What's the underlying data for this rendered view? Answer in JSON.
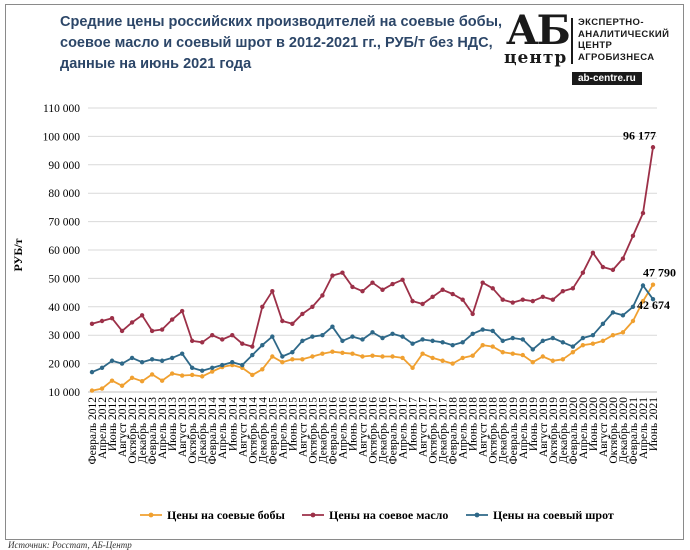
{
  "title_lines": [
    "Средние цены российских производителей  на соевые бобы,",
    "соевое масло и соевый шрот в 2012-2021 гг., РУБ/т без НДС,",
    "данные на июнь 2021 года"
  ],
  "logo": {
    "mark": "АБ",
    "word": "центр",
    "lines": [
      "ЭКСПЕРТНО-",
      "АНАЛИТИЧЕСКИЙ",
      "ЦЕНТР",
      "АГРОБИЗНЕСА"
    ],
    "site": "ab-centre.ru"
  },
  "source": "Источник: Росстат, АБ-Центр",
  "colors": {
    "beans": "#f0a030",
    "oil": "#9c3048",
    "meal": "#2e6888",
    "grid": "#d9d9d9"
  },
  "chart_data": {
    "type": "line",
    "title": "Средние цены российских производителей  на соевые бобы, соевое масло и соевый шрот в 2012-2021 гг., РУБ/т без НДС, данные на июнь 2021 года",
    "ylabel": "РУБ/т",
    "xlabel": "",
    "ylim": [
      10000,
      110000
    ],
    "y_ticks": [
      "10 000",
      "20 000",
      "30 000",
      "40 000",
      "50 000",
      "60 000",
      "70 000",
      "80 000",
      "90 000",
      "100 000",
      "110 000"
    ],
    "grid": true,
    "legend_position": "bottom",
    "x": [
      "Февраль 2012",
      "Апрель 2012",
      "Июнь 2012",
      "Август 2012",
      "Октябрь 2012",
      "Декабрь 2012",
      "Февраль 2013",
      "Апрель 2013",
      "Июнь 2013",
      "Август 2013",
      "Октябрь 2013",
      "Декабрь 2013",
      "Февраль 2014",
      "Апрель 2014",
      "Июнь 2014",
      "Август 2014",
      "Октябрь 2014",
      "Декабрь 2014",
      "Февраль 2015",
      "Апрель 2015",
      "Июнь 2015",
      "Август 2015",
      "Октябрь 2015",
      "Декабрь 2015",
      "Февраль 2016",
      "Апрель 2016",
      "Июнь 2016",
      "Август 2016",
      "Октябрь 2016",
      "Декабрь 2016",
      "Февраль 2017",
      "Апрель 2017",
      "Июнь 2017",
      "Август 2017",
      "Октябрь 2017",
      "Декабрь 2017",
      "Февраль 2018",
      "Апрель 2018",
      "Июнь 2018",
      "Август 2018",
      "Октябрь 2018",
      "Декабрь 2018",
      "Февраль 2019",
      "Апрель 2019",
      "Июнь 2019",
      "Август 2019",
      "Октябрь 2019",
      "Декабрь 2019",
      "Февраль 2020",
      "Апрель 2020",
      "Июнь 2020",
      "Август 2020",
      "Октябрь 2020",
      "Декабрь 2020",
      "Февраль 2021",
      "Апрель 2021",
      "Июнь 2021"
    ],
    "series": [
      {
        "name": "Цены на соевые бобы",
        "values": [
          10500,
          11200,
          14000,
          12200,
          15000,
          13800,
          16200,
          14000,
          16500,
          15800,
          16000,
          15500,
          17200,
          18800,
          19500,
          18500,
          16000,
          18000,
          22500,
          20500,
          21500,
          21500,
          22500,
          23500,
          24200,
          23800,
          23500,
          22500,
          22800,
          22500,
          22500,
          22000,
          18500,
          23500,
          22000,
          21000,
          20000,
          22000,
          22800,
          26500,
          26000,
          24000,
          23500,
          23000,
          20500,
          22500,
          21000,
          21500,
          24000,
          26500,
          27000,
          28000,
          30000,
          31000,
          35000,
          42000,
          47790
        ],
        "end_label": "47 790"
      },
      {
        "name": "Цены на соевое масло",
        "values": [
          34000,
          35000,
          36000,
          31500,
          34500,
          37000,
          31500,
          32000,
          35500,
          38500,
          28000,
          27500,
          30000,
          28500,
          30000,
          27000,
          26000,
          40000,
          45500,
          35000,
          34000,
          37500,
          40000,
          44000,
          51000,
          52000,
          47000,
          45500,
          48500,
          46000,
          48000,
          49500,
          42000,
          41000,
          43500,
          46000,
          44500,
          42500,
          37500,
          48500,
          46500,
          42500,
          41500,
          42500,
          42000,
          43500,
          42500,
          45500,
          46500,
          52000,
          59000,
          54000,
          53000,
          57000,
          65000,
          73000,
          96177
        ],
        "end_label": "96 177"
      },
      {
        "name": "Цены на соевый шрот",
        "values": [
          17000,
          18500,
          21000,
          20000,
          22000,
          20500,
          21500,
          21000,
          22000,
          23500,
          18500,
          17500,
          18500,
          19500,
          20500,
          19500,
          23000,
          26500,
          29500,
          22500,
          24000,
          28000,
          29500,
          30000,
          33000,
          28000,
          29500,
          28500,
          31000,
          29000,
          30500,
          29500,
          27000,
          28500,
          28000,
          27500,
          26500,
          27500,
          30500,
          32000,
          31500,
          28000,
          29000,
          28500,
          25000,
          28000,
          29000,
          27500,
          26000,
          29000,
          30000,
          34000,
          38000,
          37000,
          40000,
          47500,
          42674
        ],
        "end_label": "42 674"
      }
    ]
  }
}
